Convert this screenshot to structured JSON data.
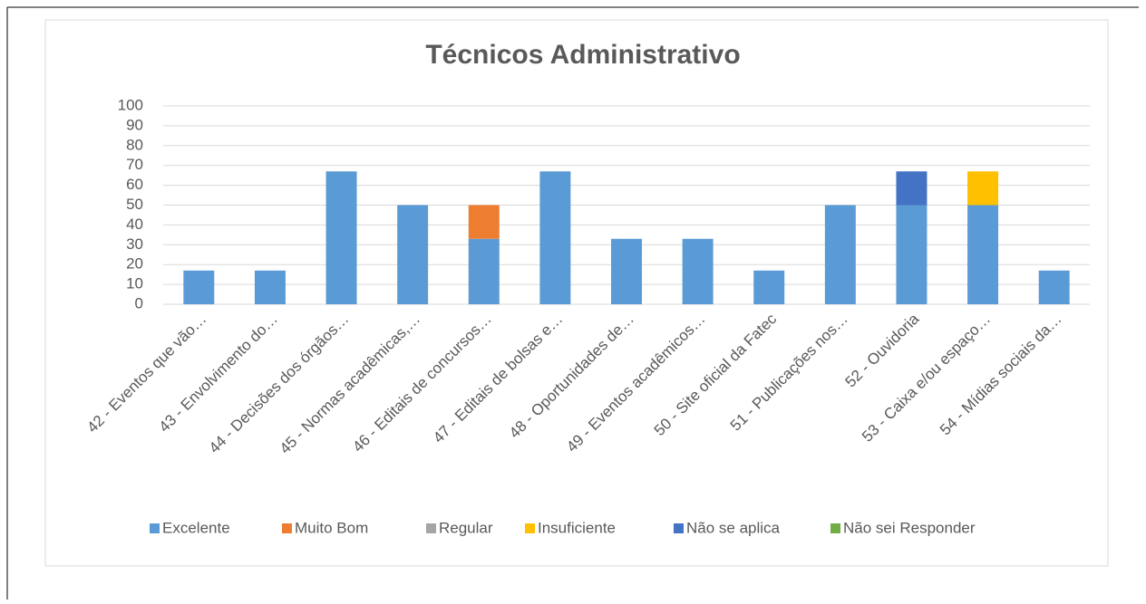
{
  "chart_data": {
    "type": "stacked_bar",
    "title": "Técnicos Administrativo",
    "categories": [
      "42 - Eventos que vão…",
      "43 - Envolvimento do…",
      "44 - Decisões dos órgãos…",
      "45 - Normas acadêmicas,…",
      "46 - Editais de concursos…",
      "47 - Editais de bolsas e…",
      "48 - Oportunidades de…",
      "49 - Eventos acadêmicos…",
      "50 - Site oficial da Fatec",
      "51 - Publicações nos…",
      "52 - Ouvidoria",
      "53 - Caixa e/ou espaço…",
      "54 - Mídias sociais da…"
    ],
    "series": [
      {
        "name": "Excelente",
        "color": "#5b9bd5",
        "values": [
          17,
          17,
          67,
          50,
          33,
          67,
          33,
          33,
          17,
          50,
          50,
          50,
          17
        ]
      },
      {
        "name": "Muito Bom",
        "color": "#ed7d31",
        "values": [
          0,
          0,
          0,
          0,
          17,
          0,
          0,
          0,
          0,
          0,
          0,
          0,
          0
        ]
      },
      {
        "name": "Regular",
        "color": "#a5a5a5",
        "values": [
          0,
          0,
          0,
          0,
          0,
          0,
          0,
          0,
          0,
          0,
          0,
          0,
          0
        ]
      },
      {
        "name": "Insuficiente",
        "color": "#ffc000",
        "values": [
          0,
          0,
          0,
          0,
          0,
          0,
          0,
          0,
          0,
          0,
          0,
          17,
          0
        ]
      },
      {
        "name": "Não se aplica",
        "color": "#4472c4",
        "values": [
          0,
          0,
          0,
          0,
          0,
          0,
          0,
          0,
          0,
          0,
          17,
          0,
          0
        ]
      },
      {
        "name": "Não sei Responder",
        "color": "#70ad47",
        "values": [
          0,
          0,
          0,
          0,
          0,
          0,
          0,
          0,
          0,
          0,
          0,
          0,
          0
        ]
      }
    ],
    "ylim": [
      0,
      100
    ],
    "yticks": [
      0,
      10,
      20,
      30,
      40,
      50,
      60,
      70,
      80,
      90,
      100
    ],
    "grid": true,
    "legend": "bottom"
  }
}
